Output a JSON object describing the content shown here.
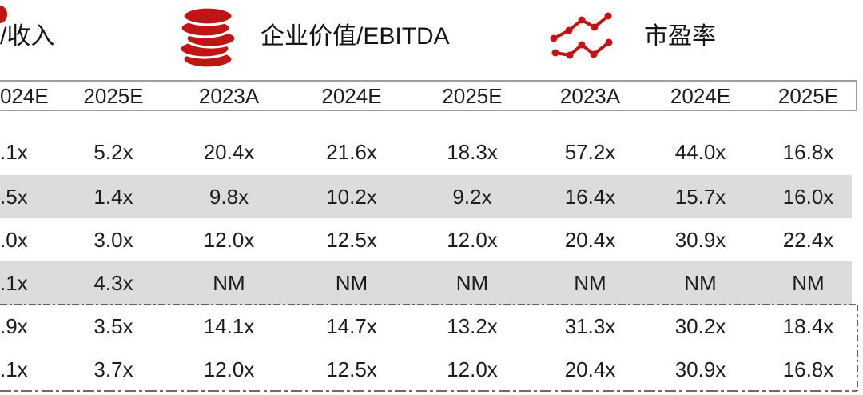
{
  "legend": {
    "ev_revenue_label": "/收入",
    "ev_ebitda_label": "企业价值/EBITDA",
    "pe_label": "市盈率"
  },
  "table": {
    "columns": [
      "024E",
      "2025E",
      "2023A",
      "2024E",
      "2025E",
      "2023A",
      "2024E",
      "2025E"
    ],
    "rows": [
      {
        "shaded": false,
        "values": [
          ".1x",
          "5.2x",
          "20.4x",
          "21.6x",
          "18.3x",
          "57.2x",
          "44.0x",
          "16.8x"
        ]
      },
      {
        "shaded": true,
        "values": [
          ".5x",
          "1.4x",
          "9.8x",
          "10.2x",
          "9.2x",
          "16.4x",
          "15.7x",
          "16.0x"
        ]
      },
      {
        "shaded": false,
        "values": [
          ".0x",
          "3.0x",
          "12.0x",
          "12.5x",
          "12.0x",
          "20.4x",
          "30.9x",
          "22.4x"
        ]
      },
      {
        "shaded": true,
        "values": [
          ".1x",
          "4.3x",
          "NM",
          "NM",
          "NM",
          "NM",
          "NM",
          "NM"
        ]
      },
      {
        "shaded": false,
        "values": [
          ".9x",
          "3.5x",
          "14.1x",
          "14.7x",
          "13.2x",
          "31.3x",
          "30.2x",
          "18.4x"
        ]
      },
      {
        "shaded": false,
        "values": [
          ".1x",
          "3.7x",
          "12.0x",
          "12.5x",
          "12.0x",
          "20.4x",
          "30.9x",
          "16.8x"
        ]
      }
    ]
  },
  "colors": {
    "accent_red": "#c01515",
    "shaded_row": "#dcdcdc",
    "header_border": "#9d9d9d",
    "text": "#1c1c1c"
  }
}
